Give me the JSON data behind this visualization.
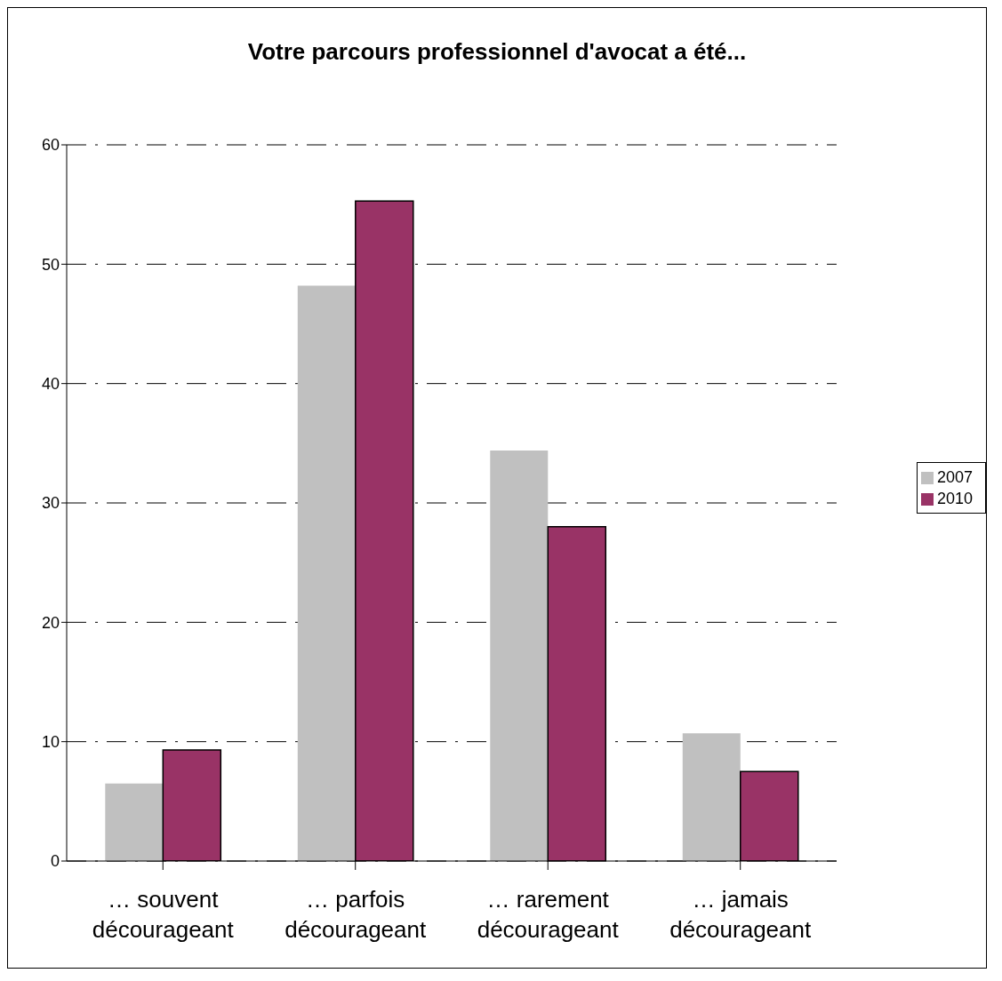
{
  "chart_data": {
    "type": "bar",
    "title": "Votre parcours professionnel d'avocat a été...",
    "categories": [
      "… souvent décourageant",
      "… parfois décourageant",
      "… rarement décourageant",
      "… jamais décourageant"
    ],
    "series": [
      {
        "name": "2007",
        "color": "#c0c0c0",
        "values": [
          6.5,
          48.2,
          34.4,
          10.7
        ]
      },
      {
        "name": "2010",
        "color": "#993366",
        "values": [
          9.3,
          55.3,
          28.0,
          7.5
        ]
      }
    ],
    "ylim": [
      0,
      60
    ],
    "yticks": [
      0,
      10,
      20,
      30,
      40,
      50,
      60
    ],
    "grid": "y",
    "legend": "right"
  }
}
